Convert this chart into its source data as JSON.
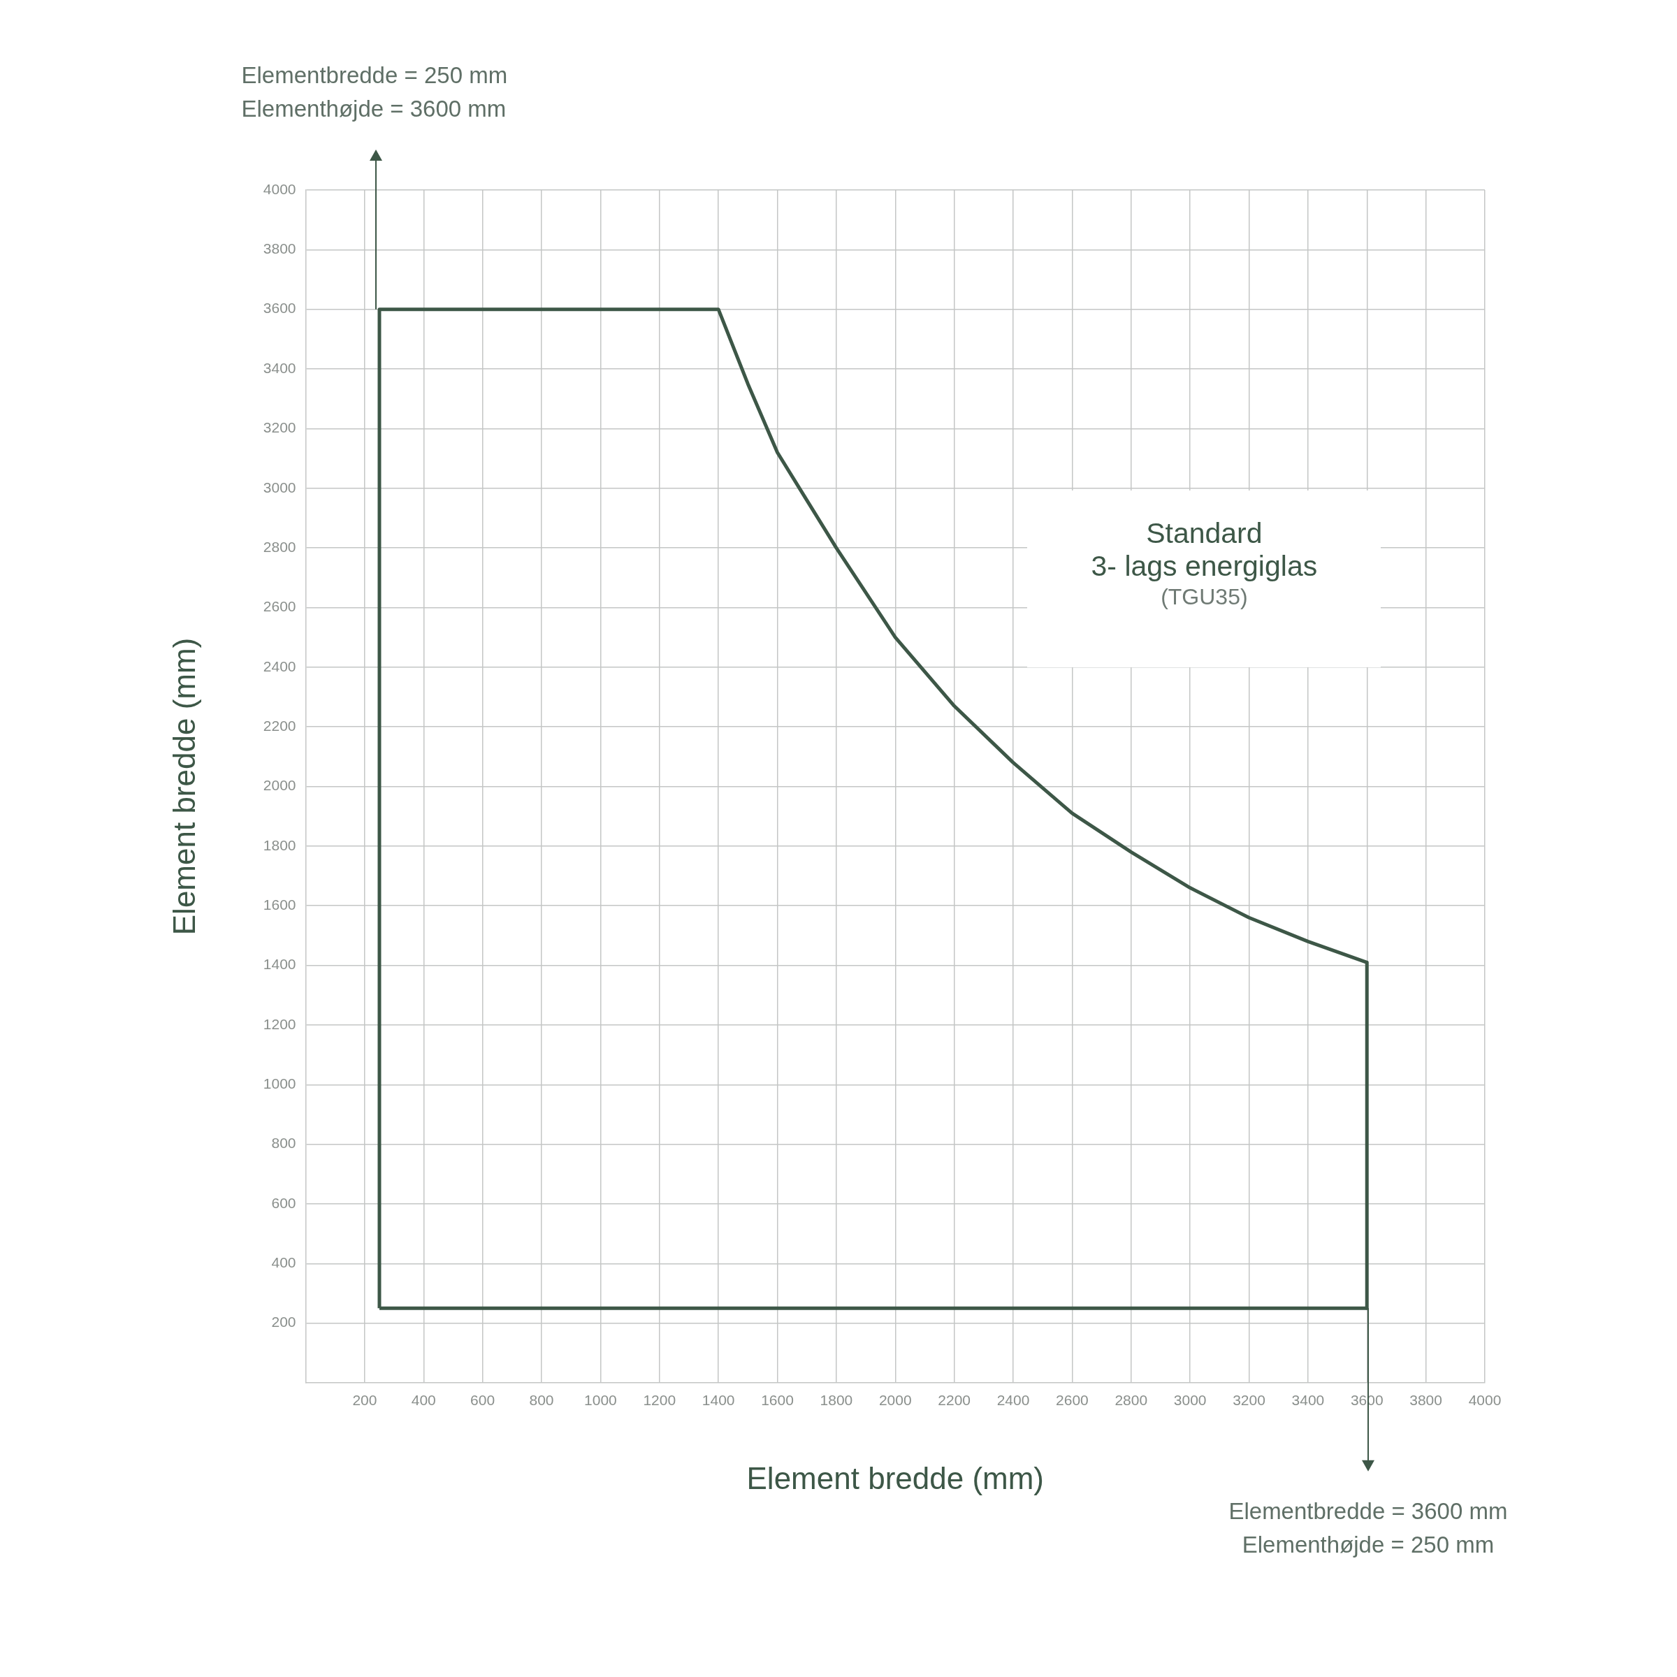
{
  "chart_data": {
    "type": "line",
    "xlabel": "Element bredde (mm)",
    "ylabel": "Element bredde (mm)",
    "xlim": [
      0,
      4000
    ],
    "ylim": [
      0,
      4000
    ],
    "xticks": [
      200,
      400,
      600,
      800,
      1000,
      1200,
      1400,
      1600,
      1800,
      2000,
      2200,
      2400,
      2600,
      2800,
      3000,
      3200,
      3400,
      3600,
      3800,
      4000
    ],
    "yticks": [
      200,
      400,
      600,
      800,
      1000,
      1200,
      1400,
      1600,
      1800,
      2000,
      2200,
      2400,
      2600,
      2800,
      3000,
      3200,
      3400,
      3600,
      3800,
      4000
    ],
    "grid": true,
    "series": [
      {
        "color": "#3d5747",
        "x": [
          250,
          250,
          1400,
          1500,
          1600,
          1700,
          1800,
          2000,
          2200,
          2400,
          2600,
          2800,
          3000,
          3200,
          3400,
          3600,
          3600
        ],
        "values": [
          250,
          3600,
          3600,
          3350,
          3120,
          2960,
          2800,
          2500,
          2270,
          2080,
          1910,
          1780,
          1660,
          1560,
          1480,
          1410,
          250
        ]
      },
      {
        "color": "#3d5747",
        "x": [
          250,
          3600
        ],
        "values": [
          250,
          250
        ]
      }
    ],
    "annotations": [
      "Elementbredde = 250 mm\nElementhøjde = 3600 mm",
      "Elementbredde = 3600 mm\nElementhøjde = 250 mm",
      "Standard\n3- lags energiglas",
      "(TGU35)"
    ]
  }
}
